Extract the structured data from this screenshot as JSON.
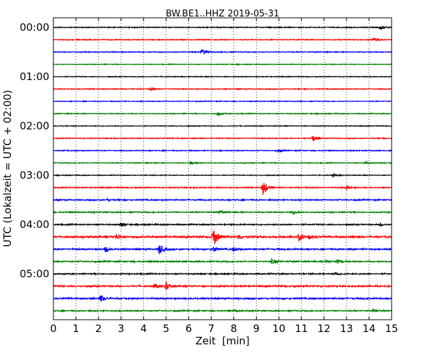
{
  "chart_data": {
    "type": "line",
    "title": "BW.BE1..HHZ 2019-05-31",
    "xlabel": "Zeit  [min]",
    "ylabel": "UTC (Lokalzeit = UTC + 02:00)",
    "xlim": [
      0,
      15
    ],
    "x_ticks": [
      "0",
      "1",
      "2",
      "3",
      "4",
      "5",
      "6",
      "7",
      "8",
      "9",
      "10",
      "11",
      "12",
      "13",
      "14",
      "15"
    ],
    "y_ticks": [
      "00:00",
      "01:00",
      "02:00",
      "03:00",
      "04:00",
      "05:00"
    ],
    "grid": "vertical dotted",
    "trace_interval_min": 15,
    "trace_colors": [
      "#000000",
      "#ff0000",
      "#0000ff",
      "#008000"
    ],
    "traces": [
      {
        "start": "00:00",
        "color": "#000000",
        "noise": 0.6,
        "events": [
          {
            "t": 14.5,
            "a": 3
          }
        ]
      },
      {
        "start": "00:15",
        "color": "#ff0000",
        "noise": 0.6,
        "events": [
          {
            "t": 14.2,
            "a": 3
          }
        ]
      },
      {
        "start": "00:30",
        "color": "#0000ff",
        "noise": 0.6,
        "events": [
          {
            "t": 6.6,
            "a": 5
          }
        ]
      },
      {
        "start": "00:45",
        "color": "#008000",
        "noise": 0.5,
        "events": []
      },
      {
        "start": "01:00",
        "color": "#000000",
        "noise": 0.5,
        "events": []
      },
      {
        "start": "01:15",
        "color": "#ff0000",
        "noise": 0.6,
        "events": [
          {
            "t": 4.3,
            "a": 2
          }
        ]
      },
      {
        "start": "01:30",
        "color": "#0000ff",
        "noise": 0.5,
        "events": []
      },
      {
        "start": "01:45",
        "color": "#008000",
        "noise": 0.6,
        "events": [
          {
            "t": 7.3,
            "a": 3
          }
        ]
      },
      {
        "start": "02:00",
        "color": "#000000",
        "noise": 0.5,
        "events": []
      },
      {
        "start": "02:15",
        "color": "#ff0000",
        "noise": 0.6,
        "events": [
          {
            "t": 11.5,
            "a": 5
          }
        ]
      },
      {
        "start": "02:30",
        "color": "#0000ff",
        "noise": 0.6,
        "events": [
          {
            "t": 10.0,
            "a": 2
          }
        ]
      },
      {
        "start": "02:45",
        "color": "#008000",
        "noise": 0.6,
        "events": [
          {
            "t": 6.1,
            "a": 3
          },
          {
            "t": 13.8,
            "a": 2
          }
        ]
      },
      {
        "start": "03:00",
        "color": "#000000",
        "noise": 0.5,
        "events": [
          {
            "t": 12.4,
            "a": 2
          }
        ]
      },
      {
        "start": "03:15",
        "color": "#ff0000",
        "noise": 0.7,
        "events": [
          {
            "t": 9.3,
            "a": 12
          },
          {
            "t": 13.0,
            "a": 3
          }
        ]
      },
      {
        "start": "03:30",
        "color": "#0000ff",
        "noise": 0.8,
        "events": [
          {
            "t": 2.4,
            "a": 1.5
          }
        ]
      },
      {
        "start": "03:45",
        "color": "#008000",
        "noise": 0.8,
        "events": [
          {
            "t": 7.4,
            "a": 3
          },
          {
            "t": 10.6,
            "a": 3
          }
        ]
      },
      {
        "start": "04:00",
        "color": "#000000",
        "noise": 0.8,
        "events": [
          {
            "t": 3.0,
            "a": 3
          },
          {
            "t": 14.5,
            "a": 2
          }
        ]
      },
      {
        "start": "04:15",
        "color": "#ff0000",
        "noise": 1.2,
        "events": [
          {
            "t": 2.8,
            "a": 4
          },
          {
            "t": 7.1,
            "a": 15
          },
          {
            "t": 8.2,
            "a": 4
          },
          {
            "t": 10.9,
            "a": 6
          },
          {
            "t": 11.3,
            "a": 3
          }
        ]
      },
      {
        "start": "04:30",
        "color": "#0000ff",
        "noise": 1.0,
        "events": [
          {
            "t": 2.3,
            "a": 4
          },
          {
            "t": 4.7,
            "a": 8
          },
          {
            "t": 7.1,
            "a": 4
          },
          {
            "t": 8.0,
            "a": 3
          }
        ]
      },
      {
        "start": "04:45",
        "color": "#008000",
        "noise": 0.9,
        "events": [
          {
            "t": 9.7,
            "a": 4
          },
          {
            "t": 12.6,
            "a": 3
          },
          {
            "t": 12.1,
            "a": 2
          }
        ]
      },
      {
        "start": "05:00",
        "color": "#000000",
        "noise": 0.8,
        "events": [
          {
            "t": 12.5,
            "a": 2
          }
        ]
      },
      {
        "start": "05:15",
        "color": "#ff0000",
        "noise": 1.0,
        "events": [
          {
            "t": 4.5,
            "a": 4
          },
          {
            "t": 5.0,
            "a": 6
          }
        ]
      },
      {
        "start": "05:30",
        "color": "#0000ff",
        "noise": 1.0,
        "events": [
          {
            "t": 2.1,
            "a": 5
          }
        ]
      },
      {
        "start": "05:45",
        "color": "#008000",
        "noise": 0.8,
        "events": [
          {
            "t": 8.0,
            "a": 2
          },
          {
            "t": 14.2,
            "a": 2
          }
        ]
      }
    ]
  }
}
